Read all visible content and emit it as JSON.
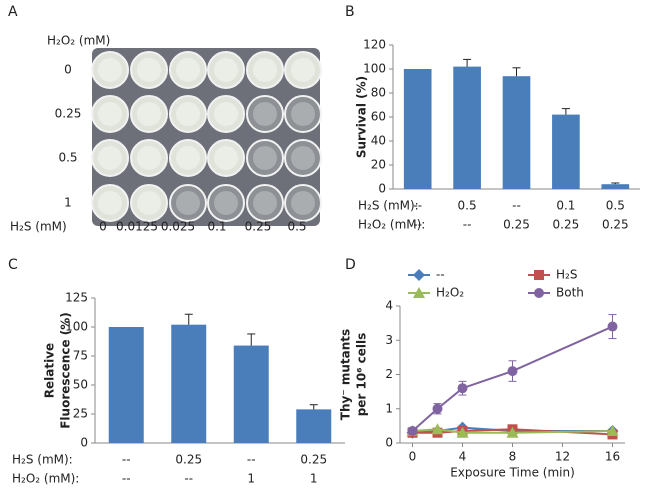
{
  "well_plate": {
    "panel": "A",
    "row_title": "H₂O₂  (mM)",
    "row_labels": [
      "0",
      "0.25",
      "0.5",
      "1"
    ],
    "column_title": "H₂S (mM)",
    "column_labels": [
      "0",
      "0.0125",
      "0.025",
      "0.1",
      "0.25",
      "0.5"
    ]
  },
  "chart_data": [
    {
      "type": "bar",
      "panel": "B",
      "ylabel": [
        "Survival (%)"
      ],
      "color": "#4a7ebb",
      "categories": [
        null,
        null,
        null,
        null,
        null
      ],
      "conditions": [
        {
          "label": "H₂S (mM):",
          "values": [
            "--",
            "0.5",
            "--",
            "0.1",
            "0.5"
          ]
        },
        {
          "label": "H₂O₂ (mM):",
          "values": [
            "--",
            "--",
            "0.25",
            "0.25",
            "0.25"
          ]
        }
      ],
      "values": [
        100,
        102,
        94,
        62,
        4
      ],
      "errors": [
        0,
        6,
        7,
        5,
        1
      ],
      "ylim": [
        0,
        120
      ],
      "yticks": [
        0,
        20,
        40,
        60,
        80,
        100,
        120
      ]
    },
    {
      "type": "bar",
      "panel": "C",
      "ylabel": [
        "Relative",
        "Fluorescence (%)"
      ],
      "color": "#4a7ebb",
      "categories": [
        null,
        null,
        null,
        null
      ],
      "conditions": [
        {
          "label": "H₂S (mM):",
          "values": [
            "--",
            "0.25",
            "--",
            "0.25"
          ]
        },
        {
          "label": "H₂O₂ (mM):",
          "values": [
            "--",
            "--",
            "1",
            "1"
          ]
        }
      ],
      "values": [
        100,
        102,
        84,
        29
      ],
      "errors": [
        0,
        9,
        10,
        4
      ],
      "ylim": [
        0,
        125
      ],
      "yticks": [
        0,
        25,
        50,
        75,
        100,
        125
      ]
    },
    {
      "type": "line",
      "panel": "D",
      "ylabel": [
        "Thy⁻ mutants",
        "per 10⁶ cells"
      ],
      "xlabel": "Exposure Time (min)",
      "x": [
        0,
        2,
        4,
        8,
        16
      ],
      "xlim": [
        -1,
        17
      ],
      "xticks": [
        0,
        4,
        8,
        12,
        16
      ],
      "ylim": [
        0,
        4
      ],
      "yticks": [
        0,
        1,
        2,
        3,
        4
      ],
      "series": [
        {
          "name": "--",
          "color": "#4a7ebb",
          "marker": "diamond",
          "values": [
            0.3,
            0.35,
            0.45,
            0.35,
            0.35
          ]
        },
        {
          "name": "H₂S",
          "color": "#c0504d",
          "marker": "square",
          "values": [
            0.3,
            0.3,
            0.35,
            0.4,
            0.25
          ]
        },
        {
          "name": "H₂O₂",
          "color": "#9bbb59",
          "marker": "triangle",
          "values": [
            0.35,
            0.4,
            0.3,
            0.3,
            0.35
          ]
        },
        {
          "name": "Both",
          "color": "#8064a2",
          "marker": "circle",
          "values": [
            0.35,
            1.0,
            1.6,
            2.1,
            3.4
          ],
          "errors": [
            0.1,
            0.15,
            0.2,
            0.3,
            0.35
          ]
        }
      ]
    }
  ]
}
